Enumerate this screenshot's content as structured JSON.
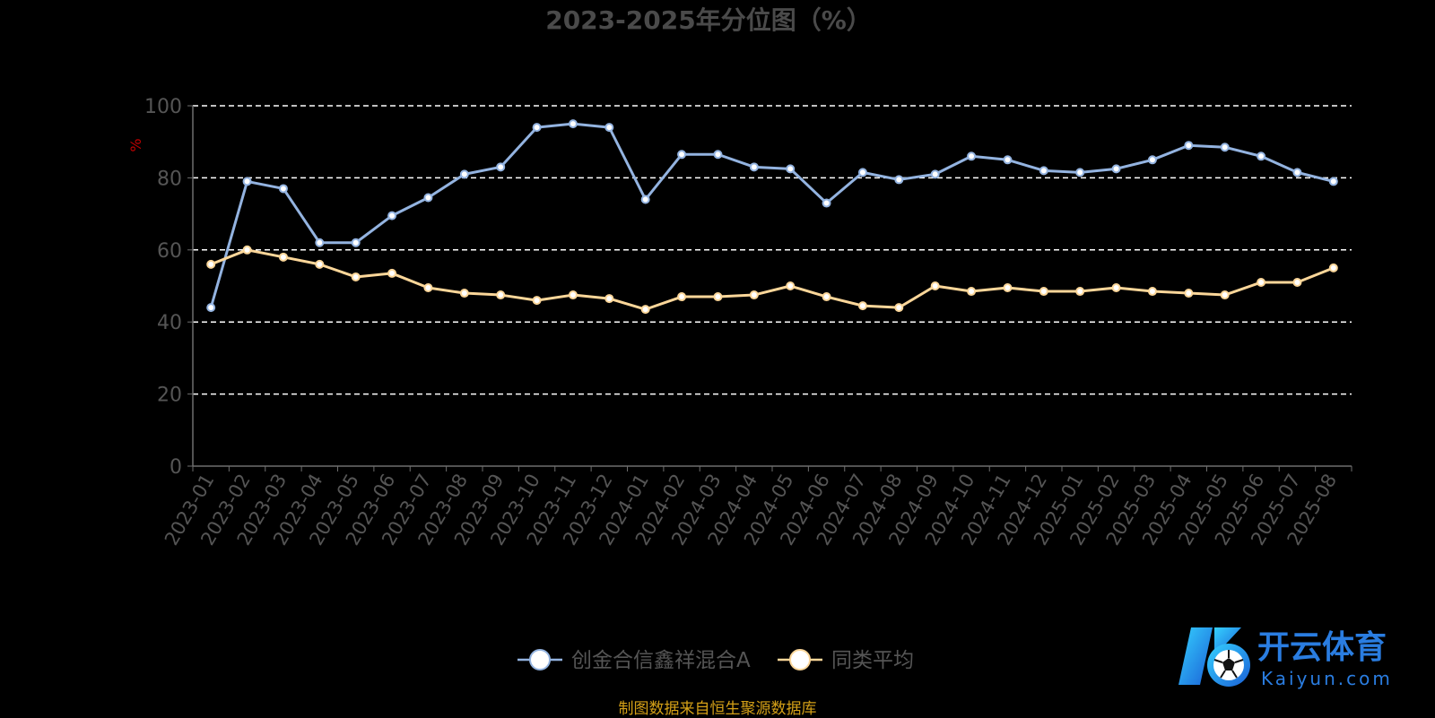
{
  "chart_data": {
    "type": "line",
    "title": "2023-2025年分位图（%）",
    "ylabel": "%",
    "ylim": [
      0,
      100
    ],
    "yticks": [
      0,
      20,
      40,
      60,
      80,
      100
    ],
    "grid": true,
    "legend_position": "bottom",
    "categories": [
      "2023-01",
      "2023-02",
      "2023-03",
      "2023-04",
      "2023-05",
      "2023-06",
      "2023-07",
      "2023-08",
      "2023-09",
      "2023-10",
      "2023-11",
      "2023-12",
      "2024-01",
      "2024-02",
      "2024-03",
      "2024-04",
      "2024-05",
      "2024-06",
      "2024-07",
      "2024-08",
      "2024-09",
      "2024-10",
      "2024-11",
      "2024-12",
      "2025-01",
      "2025-02",
      "2025-03",
      "2025-04",
      "2025-05",
      "2025-06",
      "2025-07",
      "2025-08"
    ],
    "series": [
      {
        "name": "创金合信鑫祥混合A",
        "values": [
          44,
          79,
          77,
          62,
          62,
          69.5,
          74.5,
          81,
          83,
          94,
          95,
          94,
          74,
          86.5,
          86.5,
          83,
          82.5,
          73,
          81.5,
          79.5,
          81,
          86,
          85,
          82,
          81.5,
          82.5,
          85,
          89,
          88.5,
          86,
          81.5,
          79
        ]
      },
      {
        "name": "同类平均",
        "values": [
          56,
          60,
          58,
          56,
          52.5,
          53.5,
          49.5,
          48,
          47.5,
          46,
          47.5,
          46.5,
          43.5,
          47,
          47,
          47.5,
          50,
          47,
          44.5,
          44,
          50,
          48.5,
          49.5,
          48.5,
          48.5,
          49.5,
          48.5,
          48,
          47.5,
          51,
          51,
          55
        ]
      }
    ]
  },
  "colors": {
    "series": [
      "#93b3e0",
      "#fbd699"
    ],
    "title": "#4a4a4a",
    "axis_label": "#555555",
    "ylabel": "#c00000",
    "grid": "#ffffff",
    "legend_text": "#555555",
    "source_note": "#d4a017"
  },
  "source_note": "制图数据来自恒生聚源数据库",
  "watermark": {
    "brand_cn": "开云体育",
    "brand_en": "Kaiyun.com",
    "logo_icon": "k-soccer-ball-logo-icon"
  }
}
